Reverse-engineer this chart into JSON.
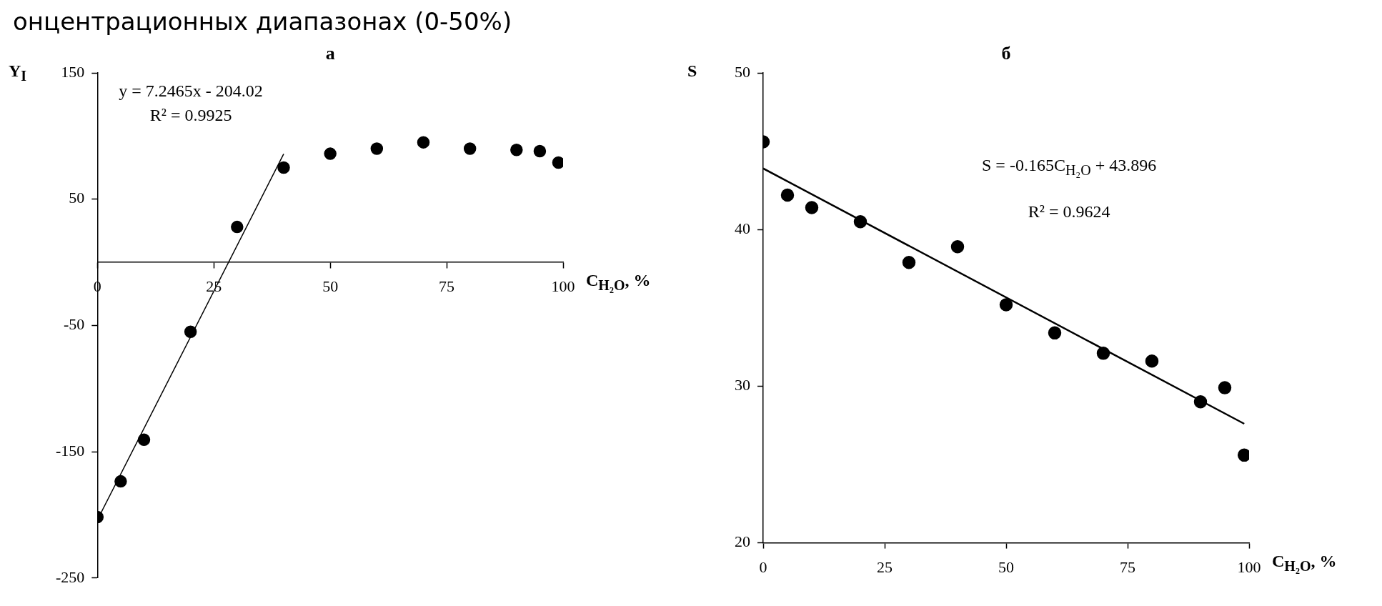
{
  "chart_data": [
    {
      "type": "scatter",
      "title": "а",
      "xlabel": "C$_{H₂O}$, %",
      "ylabel": "Y$_{I}$",
      "marker": "circle",
      "x": [
        0,
        5,
        10,
        20,
        30,
        40,
        50,
        60,
        70,
        80,
        90,
        95,
        99
      ],
      "series": [
        {
          "color": "#000000",
          "values": [
            -201.7,
            -173.5,
            -140.5,
            -55,
            28,
            75,
            86,
            90,
            95,
            90,
            89,
            88,
            79
          ]
        },
        {
          "type": "line",
          "color": "#000000",
          "marker": "none",
          "x": [
            0,
            40
          ],
          "values": [
            -204,
            85.8
          ]
        }
      ],
      "xlim": [
        0,
        100
      ],
      "xticks": [
        0,
        25,
        50,
        75,
        100
      ],
      "ylim": [
        -250,
        150
      ],
      "yticks": [
        -250,
        -150,
        -50,
        50,
        150
      ],
      "annotations": [
        "онцентрационных диапазонах (0-50%)",
        "y = 7.2465x - 204.02",
        "R² = 0.9925"
      ]
    },
    {
      "type": "scatter",
      "title": "б",
      "xlabel": "C$_{H₂O}$, %",
      "ylabel": "S",
      "marker": "circle",
      "x": [
        0,
        5,
        10,
        20,
        30,
        40,
        50,
        60,
        70,
        80,
        90,
        95,
        99
      ],
      "series": [
        {
          "color": "#000000",
          "values": [
            45.6,
            42.2,
            41.4,
            40.5,
            37.9,
            38.9,
            35.2,
            33.4,
            32.1,
            31.6,
            29.0,
            29.9,
            25.6
          ]
        },
        {
          "type": "line",
          "color": "#000000",
          "marker": "none",
          "x": [
            0,
            99
          ],
          "values": [
            43.9,
            27.6
          ]
        }
      ],
      "xlim": [
        0,
        100
      ],
      "xticks": [
        0,
        25,
        50,
        75,
        100
      ],
      "ylim": [
        20,
        50
      ],
      "yticks": [
        20,
        30,
        40,
        50
      ],
      "annotations": [
        "S = -0.165C$_{H₂O}$ + 43.896",
        "R² = 0.9624"
      ]
    }
  ]
}
